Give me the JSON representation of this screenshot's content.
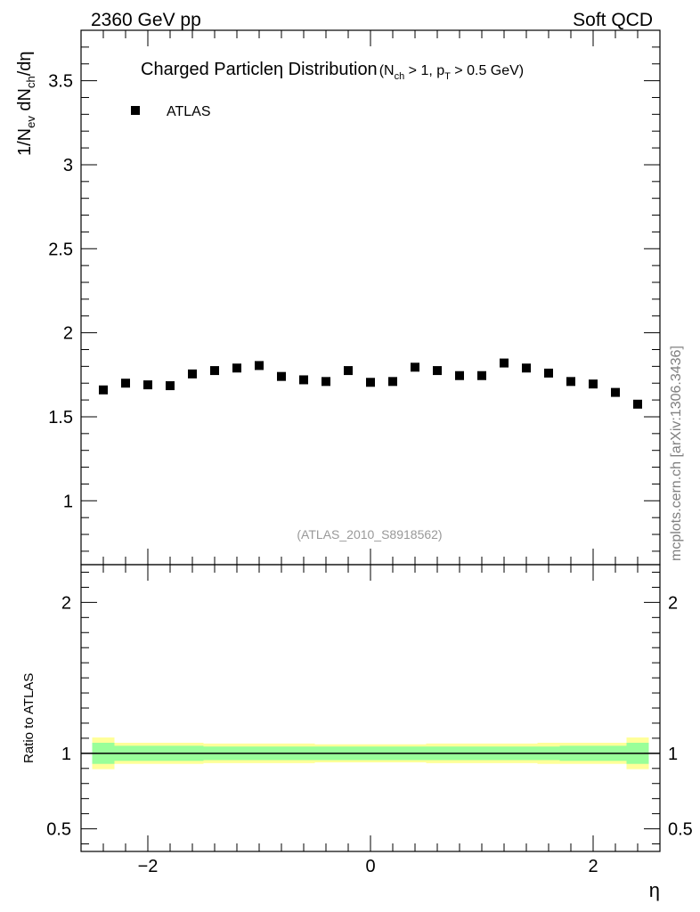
{
  "header": {
    "energy_label": "2360 GeV pp",
    "category_label": "Soft QCD"
  },
  "watermark": "mcplots.cern.ch [arXiv:1306.3436]",
  "analysis_id": "(ATLAS_2010_S8918562)",
  "chart_data": [
    {
      "type": "scatter",
      "title": "Charged Particleη Distribution",
      "title_suffix": {
        "open": "(N",
        "sub1": "ch",
        "mid": " > 1, p",
        "sub2": "T",
        "close": " > 0.5 GeV)"
      },
      "ylabel": {
        "p1": "1/N",
        "s1": "ev",
        "p2": " dN",
        "s2": "ch",
        "p3": "/dη"
      },
      "xlabel": "",
      "xlim": [
        -2.6,
        2.6
      ],
      "ylim": [
        0.62,
        3.8
      ],
      "yticks": [
        1,
        1.5,
        2,
        2.5,
        3,
        3.5
      ],
      "ytick_labels": [
        "1",
        "1.5",
        "2",
        "2.5",
        "3",
        "3.5"
      ],
      "legend": {
        "position": "top-left",
        "entries": [
          "ATLAS"
        ]
      },
      "series": [
        {
          "name": "ATLAS",
          "marker": "square",
          "color": "#000000",
          "x": [
            -2.4,
            -2.2,
            -2.0,
            -1.8,
            -1.6,
            -1.4,
            -1.2,
            -1.0,
            -0.8,
            -0.6,
            -0.4,
            -0.2,
            0.0,
            0.2,
            0.4,
            0.6,
            0.8,
            1.0,
            1.2,
            1.4,
            1.6,
            1.8,
            2.0,
            2.2,
            2.4
          ],
          "y": [
            1.66,
            1.7,
            1.69,
            1.685,
            1.755,
            1.775,
            1.79,
            1.805,
            1.74,
            1.72,
            1.71,
            1.775,
            1.705,
            1.71,
            1.795,
            1.775,
            1.745,
            1.745,
            1.82,
            1.79,
            1.76,
            1.71,
            1.695,
            1.645,
            1.575
          ]
        }
      ]
    },
    {
      "type": "area",
      "title": "",
      "ylabel": "Ratio to ATLAS",
      "xlabel": "η",
      "xlim": [
        -2.6,
        2.6
      ],
      "ylim": [
        0.35,
        2.25
      ],
      "xticks": [
        -2,
        0,
        2
      ],
      "xtick_labels": [
        "−2",
        "0",
        "2"
      ],
      "yticks": [
        0.5,
        1,
        2
      ],
      "ytick_labels": [
        "0.5",
        "1",
        "2"
      ],
      "reference_line": 1,
      "colors": {
        "outer_band": "#ffff99",
        "inner_band": "#99ff99",
        "line": "#000000"
      },
      "bins": [
        -2.5,
        -2.3,
        -2.1,
        -1.9,
        -1.7,
        -1.5,
        -1.3,
        -1.1,
        -0.9,
        -0.7,
        -0.5,
        -0.3,
        -0.1,
        0.1,
        0.3,
        0.5,
        0.7,
        0.9,
        1.1,
        1.3,
        1.5,
        1.7,
        1.9,
        2.1,
        2.3,
        2.5
      ],
      "inner_band": [
        0.07,
        0.05,
        0.05,
        0.05,
        0.05,
        0.045,
        0.045,
        0.045,
        0.045,
        0.045,
        0.045,
        0.045,
        0.045,
        0.045,
        0.045,
        0.045,
        0.045,
        0.045,
        0.045,
        0.045,
        0.045,
        0.05,
        0.05,
        0.05,
        0.07
      ],
      "outer_band": [
        0.105,
        0.07,
        0.07,
        0.07,
        0.07,
        0.065,
        0.065,
        0.065,
        0.065,
        0.065,
        0.06,
        0.06,
        0.06,
        0.06,
        0.06,
        0.065,
        0.065,
        0.065,
        0.065,
        0.065,
        0.07,
        0.07,
        0.07,
        0.07,
        0.105
      ]
    }
  ]
}
